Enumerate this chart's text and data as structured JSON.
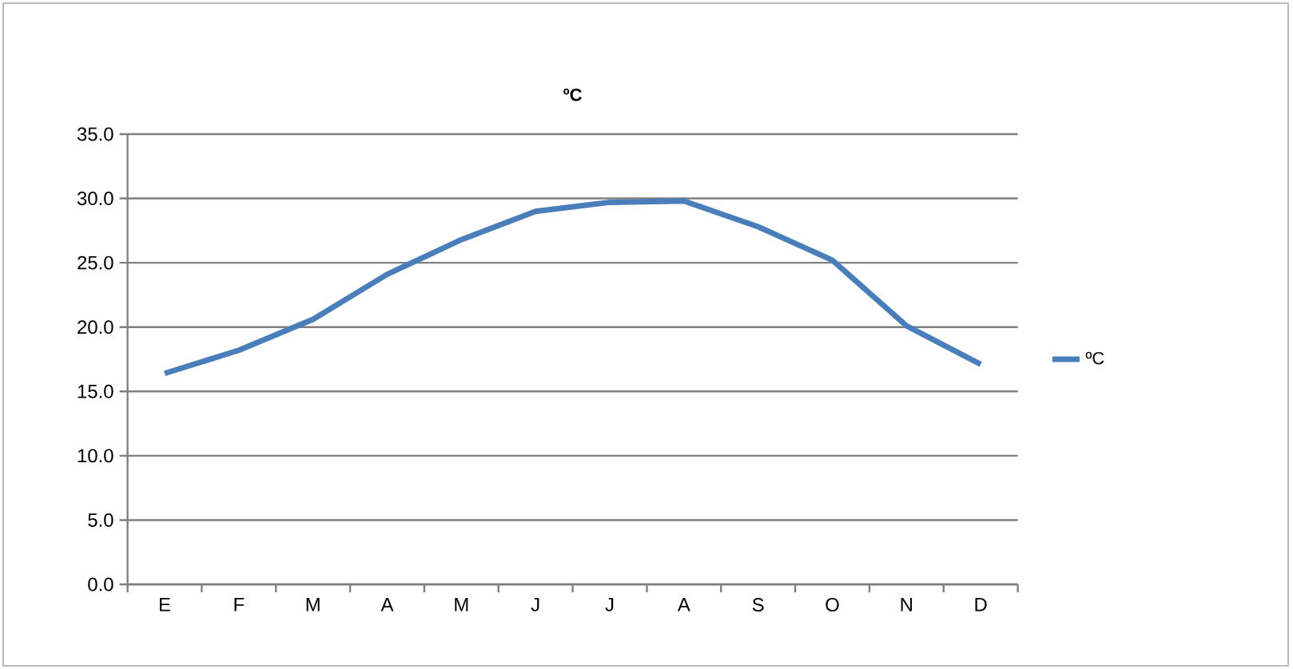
{
  "chart_data": {
    "type": "line",
    "title": "ºC",
    "categories": [
      "E",
      "F",
      "M",
      "A",
      "M",
      "J",
      "J",
      "A",
      "S",
      "O",
      "N",
      "D"
    ],
    "series": [
      {
        "name": "ºC",
        "color": "#4a7ebb",
        "values": [
          16.4,
          18.2,
          20.6,
          24.1,
          26.8,
          29.0,
          29.7,
          29.8,
          27.8,
          25.2,
          20.1,
          17.1
        ]
      }
    ],
    "ylim": [
      0,
      35
    ],
    "yticks": [
      {
        "value": 0,
        "label": "0.0"
      },
      {
        "value": 5,
        "label": "5.0"
      },
      {
        "value": 10,
        "label": "10.0"
      },
      {
        "value": 15,
        "label": "15.0"
      },
      {
        "value": 20,
        "label": "20.0"
      },
      {
        "value": 25,
        "label": "25.0"
      },
      {
        "value": 30,
        "label": "30.0"
      },
      {
        "value": 35,
        "label": "35.0"
      }
    ],
    "grid": "y",
    "legend": "right",
    "marker": "none",
    "line_style": "solid"
  }
}
